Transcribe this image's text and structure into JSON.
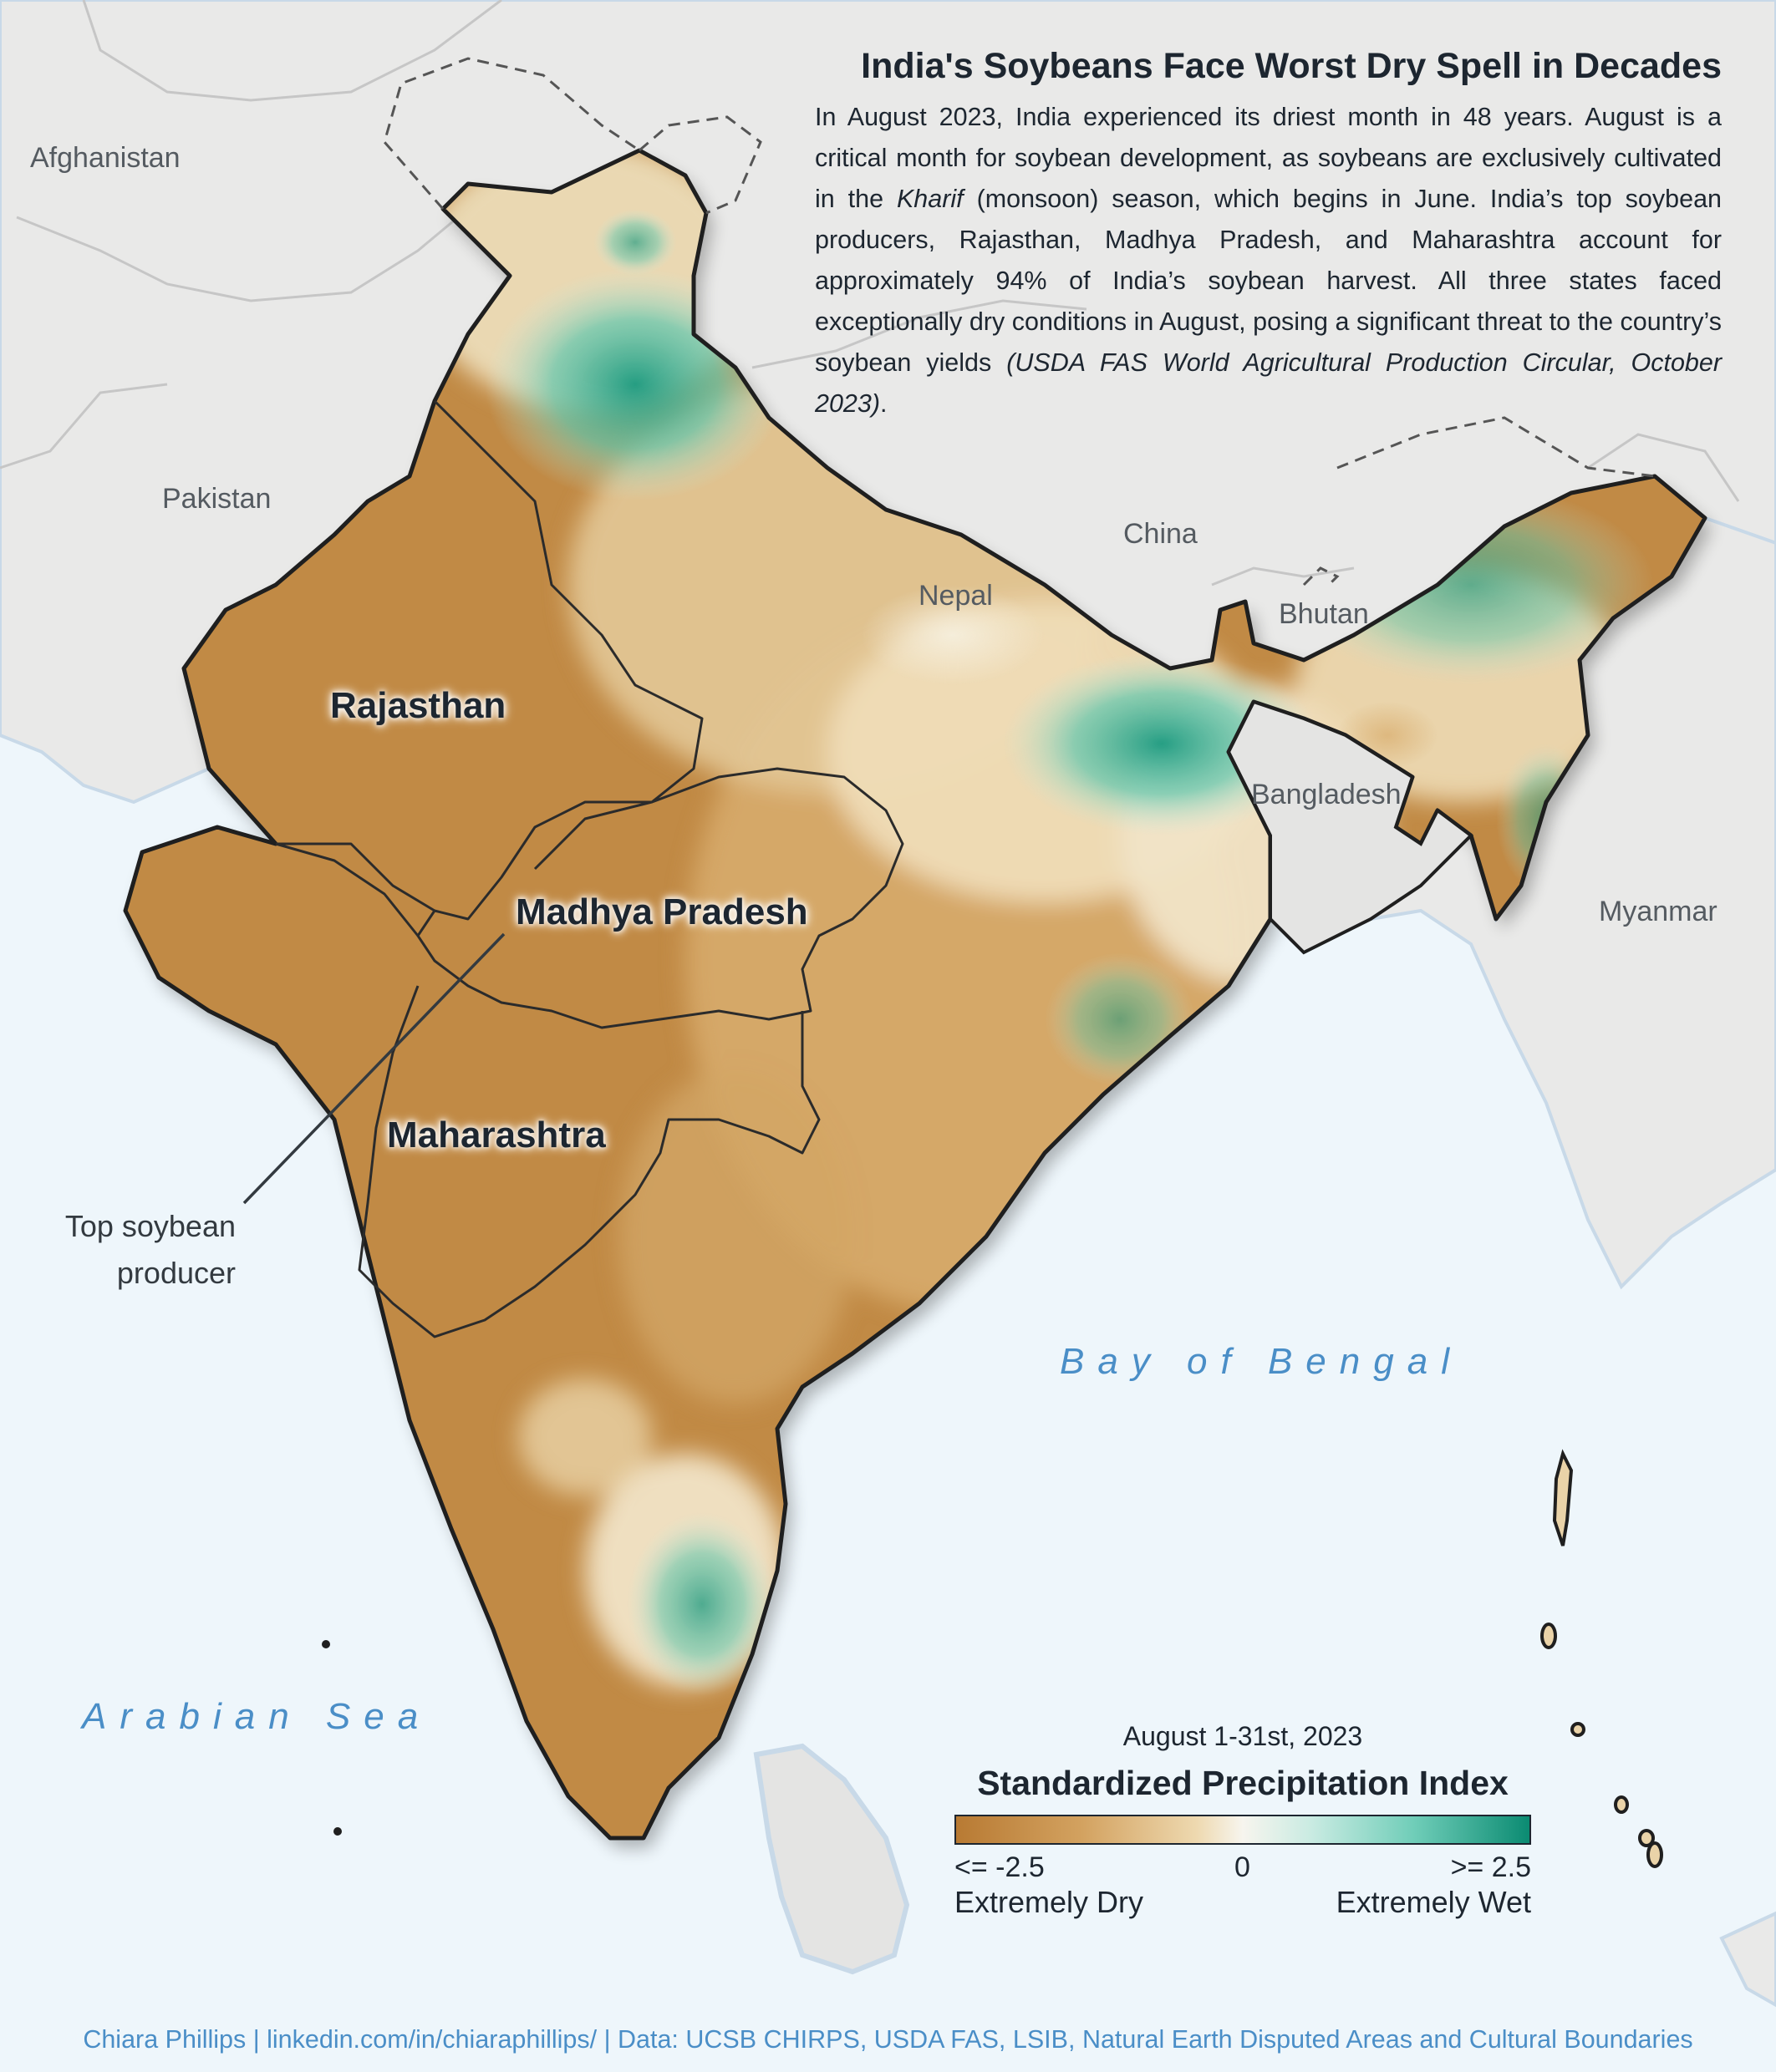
{
  "title": "India's Soybeans Face Worst Dry Spell in Decades",
  "description": {
    "part1": "In August 2023, India experienced its driest month in 48 years. August is a critical month for soybean development, as soybeans are exclusively cultivated in the ",
    "kharif": "Kharif",
    "part2": " (monsoon) season, which begins in June. India’s top soybean producers, Rajasthan, Madhya Pradesh, and Maharashtra account for approximately 94% of India’s soybean harvest. All three states faced exceptionally dry conditions in August,  posing a significant threat to the country’s soybean yields ",
    "citation": "(USDA FAS World Agricultural Production Circular, October 2023)",
    "end": "."
  },
  "countries": {
    "afghanistan": "Afghanistan",
    "pakistan": "Pakistan",
    "china": "China",
    "nepal": "Nepal",
    "bhutan": "Bhutan",
    "bangladesh": "Bangladesh",
    "myanmar": "Myanmar"
  },
  "seas": {
    "bay_of_bengal": "Bay of Bengal",
    "arabian_sea": "Arabian Sea"
  },
  "states": {
    "rajasthan": "Rajasthan",
    "madhya_pradesh": "Madhya Pradesh",
    "maharashtra": "Maharashtra"
  },
  "callout": {
    "line1": "Top soybean",
    "line2": "producer"
  },
  "legend": {
    "period": "August 1-31st, 2023",
    "title": "Standardized Precipitation Index",
    "min_label": "<= -2.5",
    "mid_label": "0",
    "max_label": ">= 2.5",
    "dry_label": "Extremely Dry",
    "wet_label": "Extremely Wet",
    "colors": {
      "dry": "#b87a33",
      "neutral": "#f7f5ee",
      "wet": "#0b8b72"
    }
  },
  "credit": "Chiara Phillips | linkedin.com/in/chiaraphillips/ | Data: UCSB CHIRPS, USDA FAS, LSIB, Natural Earth Disputed Areas and Cultural Boundaries"
}
